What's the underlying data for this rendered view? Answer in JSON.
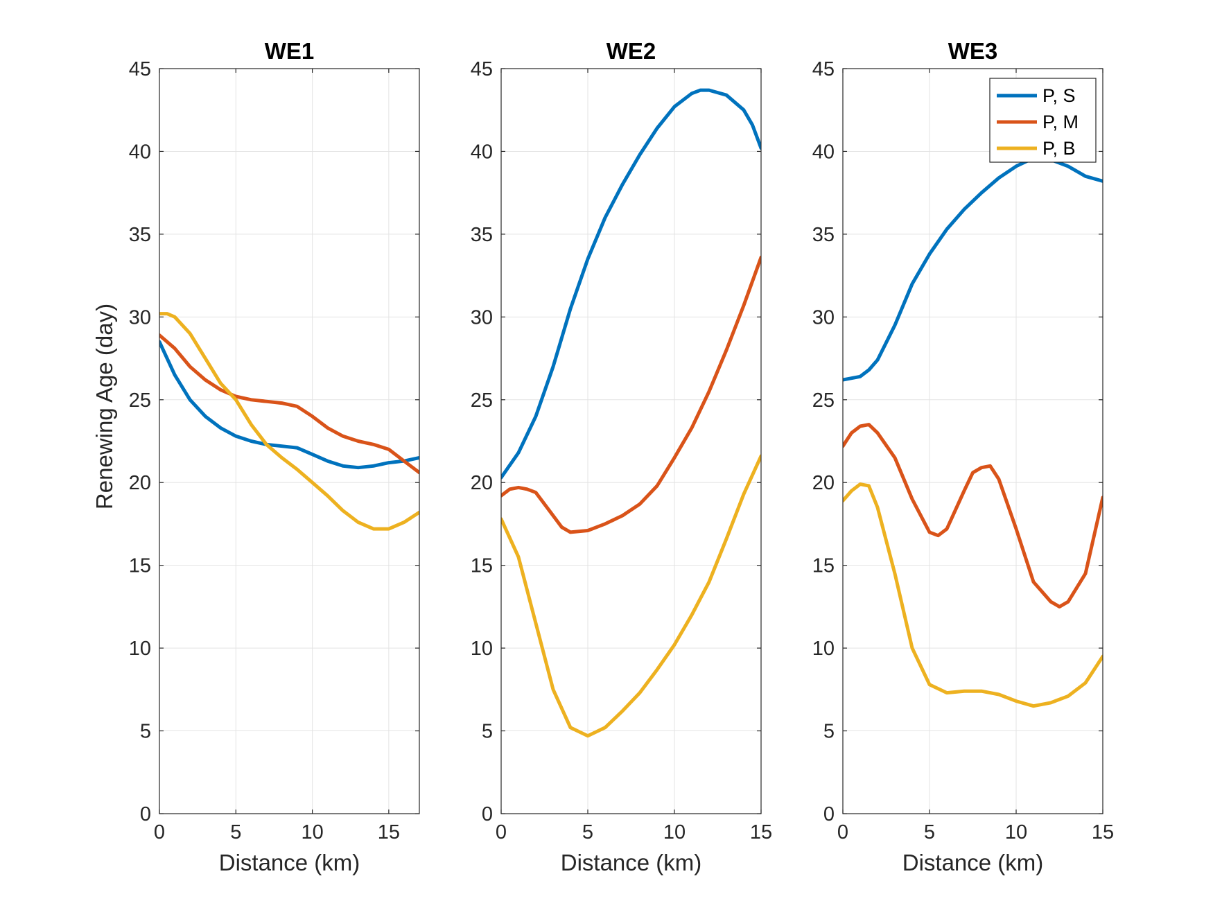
{
  "figure": {
    "ylabel": "Renewing Age (day)"
  },
  "legend": {
    "entries": [
      {
        "label": "P, S",
        "color": "#0072BD"
      },
      {
        "label": "P, M",
        "color": "#D95319"
      },
      {
        "label": "P, B",
        "color": "#EDB120"
      }
    ],
    "placement": "top-right",
    "panel": 2
  },
  "chart_data": [
    {
      "type": "line",
      "title": "WE1",
      "xlabel": "Distance (km)",
      "ylabel": "Renewing Age (day)",
      "xlim": [
        0,
        17
      ],
      "ylim": [
        0,
        45
      ],
      "xticks": [
        0,
        5,
        10,
        15
      ],
      "yticks": [
        0,
        5,
        10,
        15,
        20,
        25,
        30,
        35,
        40,
        45
      ],
      "grid": true,
      "series": [
        {
          "name": "P, S",
          "color": "#0072BD",
          "x": [
            0,
            1,
            2,
            3,
            4,
            5,
            6,
            7,
            8,
            9,
            10,
            11,
            12,
            13,
            14,
            15,
            16,
            17
          ],
          "y": [
            28.5,
            26.5,
            25.0,
            24.0,
            23.3,
            22.8,
            22.5,
            22.3,
            22.2,
            22.1,
            21.7,
            21.3,
            21.0,
            20.9,
            21.0,
            21.2,
            21.3,
            21.5
          ]
        },
        {
          "name": "P, M",
          "color": "#D95319",
          "x": [
            0,
            1,
            2,
            3,
            4,
            5,
            6,
            7,
            8,
            9,
            10,
            11,
            12,
            13,
            14,
            15,
            16,
            17
          ],
          "y": [
            28.9,
            28.1,
            27.0,
            26.2,
            25.6,
            25.2,
            25.0,
            24.9,
            24.8,
            24.6,
            24.0,
            23.3,
            22.8,
            22.5,
            22.3,
            22.0,
            21.3,
            20.6
          ]
        },
        {
          "name": "P, B",
          "color": "#EDB120",
          "x": [
            0,
            0.5,
            1,
            2,
            3,
            4,
            5,
            6,
            7,
            8,
            9,
            10,
            11,
            12,
            13,
            14,
            15,
            16,
            17
          ],
          "y": [
            30.2,
            30.2,
            30.0,
            29.0,
            27.5,
            26.0,
            25.0,
            23.5,
            22.3,
            21.5,
            20.8,
            20.0,
            19.2,
            18.3,
            17.6,
            17.2,
            17.2,
            17.6,
            18.2
          ]
        }
      ]
    },
    {
      "type": "line",
      "title": "WE2",
      "xlabel": "Distance (km)",
      "ylabel": "",
      "xlim": [
        0,
        15
      ],
      "ylim": [
        0,
        45
      ],
      "xticks": [
        0,
        5,
        10,
        15
      ],
      "yticks": [
        0,
        5,
        10,
        15,
        20,
        25,
        30,
        35,
        40,
        45
      ],
      "grid": true,
      "series": [
        {
          "name": "P, S",
          "color": "#0072BD",
          "x": [
            0,
            1,
            2,
            3,
            4,
            5,
            6,
            7,
            8,
            9,
            10,
            11,
            11.5,
            12,
            13,
            14,
            14.5,
            15
          ],
          "y": [
            20.3,
            21.8,
            24.0,
            27.0,
            30.5,
            33.5,
            36.0,
            38.0,
            39.8,
            41.4,
            42.7,
            43.5,
            43.7,
            43.7,
            43.4,
            42.5,
            41.6,
            40.2
          ]
        },
        {
          "name": "P, M",
          "color": "#D95319",
          "x": [
            0,
            0.5,
            1,
            1.5,
            2,
            3,
            3.5,
            4,
            5,
            6,
            7,
            8,
            9,
            10,
            11,
            12,
            13,
            14,
            15
          ],
          "y": [
            19.2,
            19.6,
            19.7,
            19.6,
            19.4,
            18.0,
            17.3,
            17.0,
            17.1,
            17.5,
            18.0,
            18.7,
            19.8,
            21.5,
            23.3,
            25.5,
            28.0,
            30.7,
            33.6
          ]
        },
        {
          "name": "P, B",
          "color": "#EDB120",
          "x": [
            0,
            1,
            2,
            3,
            4,
            5,
            6,
            7,
            8,
            9,
            10,
            11,
            12,
            13,
            14,
            15
          ],
          "y": [
            17.8,
            15.5,
            11.5,
            7.5,
            5.2,
            4.7,
            5.2,
            6.2,
            7.3,
            8.7,
            10.2,
            12.0,
            14.0,
            16.6,
            19.3,
            21.6
          ]
        }
      ]
    },
    {
      "type": "line",
      "title": "WE3",
      "xlabel": "Distance (km)",
      "ylabel": "",
      "xlim": [
        0,
        15
      ],
      "ylim": [
        0,
        45
      ],
      "xticks": [
        0,
        5,
        10,
        15
      ],
      "yticks": [
        0,
        5,
        10,
        15,
        20,
        25,
        30,
        35,
        40,
        45
      ],
      "grid": true,
      "series": [
        {
          "name": "P, S",
          "color": "#0072BD",
          "x": [
            0,
            0.5,
            1,
            1.5,
            2,
            3,
            4,
            5,
            6,
            7,
            8,
            9,
            10,
            11,
            12,
            13,
            14,
            15
          ],
          "y": [
            26.2,
            26.3,
            26.4,
            26.8,
            27.4,
            29.5,
            32.0,
            33.8,
            35.3,
            36.5,
            37.5,
            38.4,
            39.1,
            39.6,
            39.5,
            39.1,
            38.5,
            38.2
          ]
        },
        {
          "name": "P, M",
          "color": "#D95319",
          "x": [
            0,
            0.5,
            1,
            1.5,
            2,
            3,
            4,
            5,
            5.5,
            6,
            7,
            7.5,
            8,
            8.5,
            9,
            10,
            11,
            12,
            12.5,
            13,
            14,
            15
          ],
          "y": [
            22.2,
            23.0,
            23.4,
            23.5,
            23.0,
            21.5,
            19.0,
            17.0,
            16.8,
            17.2,
            19.5,
            20.6,
            20.9,
            21.0,
            20.2,
            17.2,
            14.0,
            12.8,
            12.5,
            12.8,
            14.5,
            19.1
          ]
        },
        {
          "name": "P, B",
          "color": "#EDB120",
          "x": [
            0,
            0.5,
            1,
            1.5,
            2,
            3,
            4,
            5,
            6,
            7,
            8,
            9,
            10,
            11,
            12,
            13,
            14,
            15
          ],
          "y": [
            18.9,
            19.5,
            19.9,
            19.8,
            18.5,
            14.5,
            10.0,
            7.8,
            7.3,
            7.4,
            7.4,
            7.2,
            6.8,
            6.5,
            6.7,
            7.1,
            7.9,
            9.5
          ]
        }
      ]
    }
  ]
}
